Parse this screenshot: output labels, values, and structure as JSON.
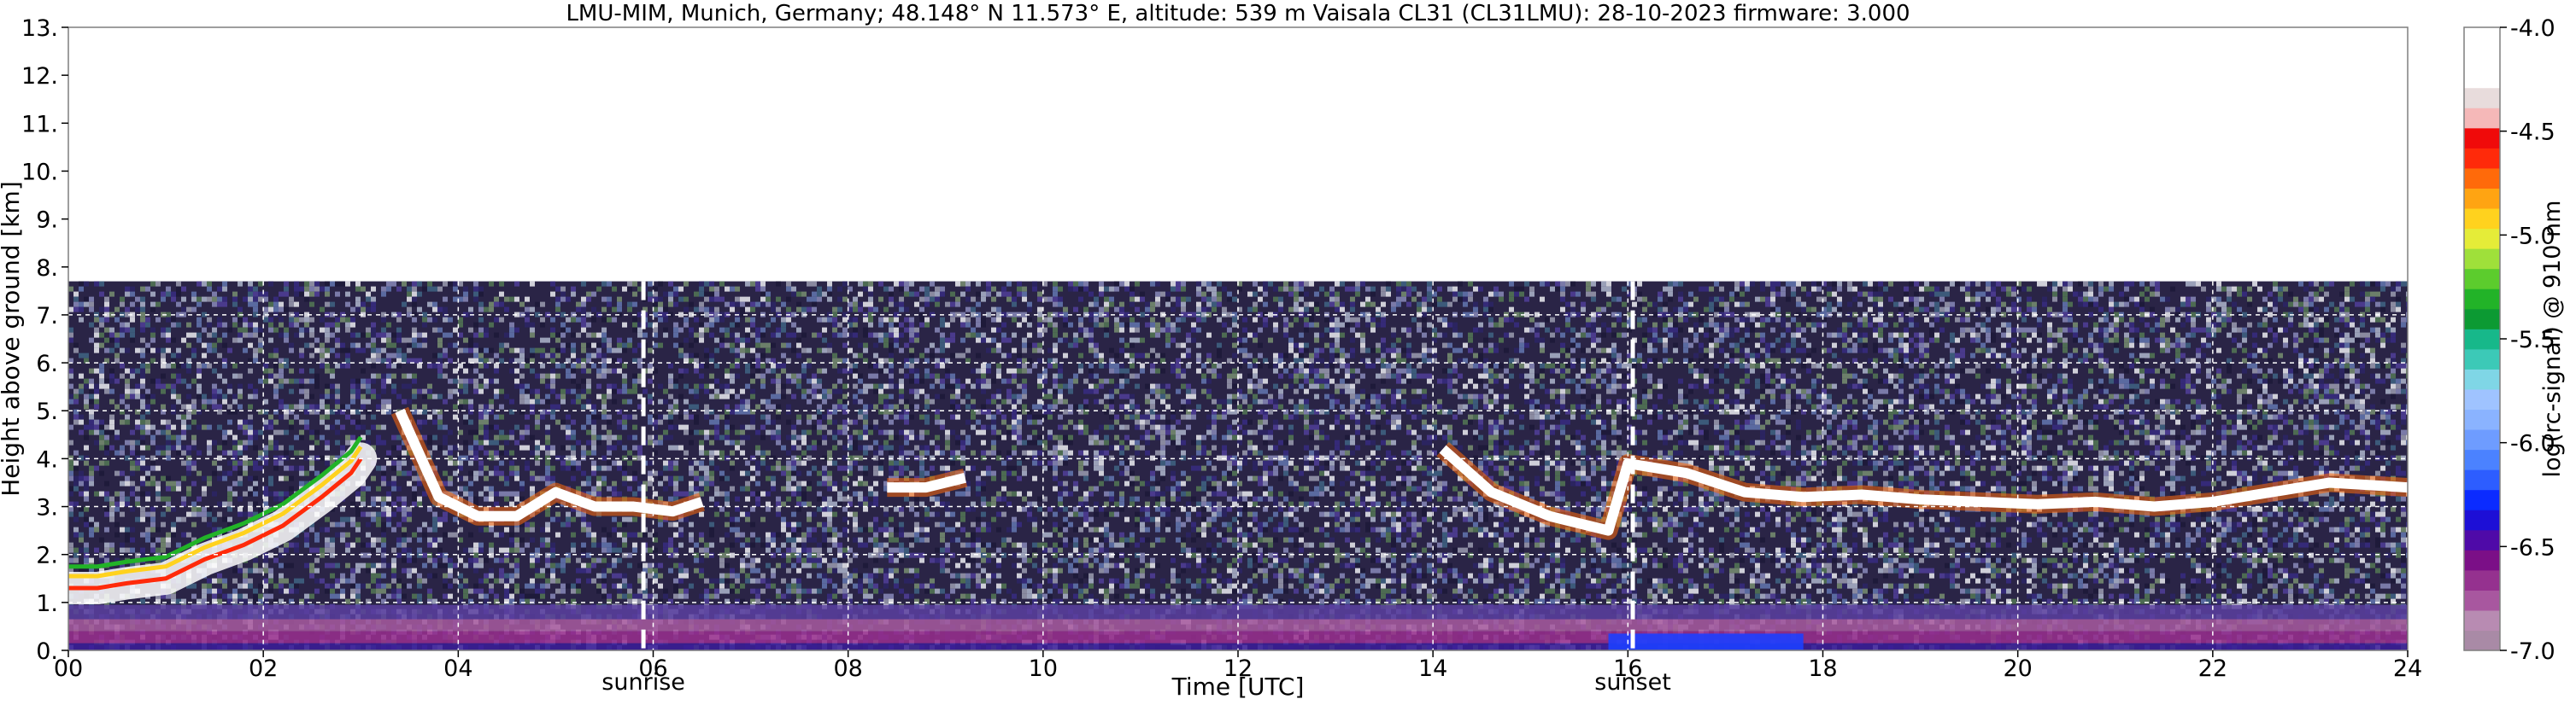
{
  "chart_data": {
    "type": "heatmap",
    "title": "LMU-MIM, Munich, Germany; 48.148° N 11.573° E, altitude: 539 m    Vaisala CL31 (CL31LMU): 28-10-2023    firmware: 3.000",
    "xlabel": "Time [UTC]",
    "ylabel": "Height above ground [km]",
    "xlim": [
      0,
      24
    ],
    "ylim": [
      0,
      13
    ],
    "x_ticks": [
      0,
      2,
      4,
      6,
      8,
      10,
      12,
      14,
      16,
      18,
      20,
      22,
      24
    ],
    "x_tick_labels": [
      "00",
      "02",
      "04",
      "06",
      "08",
      "10",
      "12",
      "14",
      "16",
      "18",
      "20",
      "22",
      "24"
    ],
    "y_ticks": [
      0,
      1,
      2,
      3,
      4,
      5,
      6,
      7,
      8,
      9,
      10,
      11,
      12,
      13
    ],
    "y_tick_labels": [
      "0.",
      "1.",
      "2.",
      "3.",
      "4.",
      "5.",
      "6.",
      "7.",
      "8.",
      "9.",
      "10.",
      "11.",
      "12.",
      "13."
    ],
    "grid": true,
    "data_top_km": 7.7,
    "markers": [
      {
        "label": "sunrise",
        "x": 5.9
      },
      {
        "label": "sunset",
        "x": 16.05
      }
    ],
    "colorbar": {
      "label": "log(rc-signal) @ 910 nm",
      "range": [
        -7.0,
        -4.0
      ],
      "tick_values": [
        -4.0,
        -4.5,
        -5.0,
        -5.5,
        -6.0,
        -6.5,
        -7.0
      ],
      "tick_labels": [
        "-4.0",
        "-4.5",
        "-5.0",
        "-5.5",
        "-6.0",
        "-6.5",
        "-7.0"
      ],
      "colors": [
        "#a98aa6",
        "#b88bb2",
        "#a8579f",
        "#95318f",
        "#7b0f87",
        "#4f0aa8",
        "#1d0fd6",
        "#0b2bff",
        "#2d5dff",
        "#4b82ff",
        "#6e9cff",
        "#8ab3ff",
        "#9fc3ff",
        "#7fd6e6",
        "#3cc9b7",
        "#17b88a",
        "#0c9a33",
        "#22b328",
        "#5ccc2d",
        "#9fe03a",
        "#e5ec38",
        "#ffd21e",
        "#ffa412",
        "#ff6a0a",
        "#ff2a0a",
        "#f00a0a",
        "#f5b8b8",
        "#e8dcdc",
        "#ffffff",
        "#ffffff",
        "#ffffff"
      ]
    },
    "series": [
      {
        "layer": "aerosol layer top",
        "x": [
          0.0,
          0.3,
          0.6,
          1.0,
          1.4,
          1.8,
          2.2,
          2.6,
          2.9,
          3.0
        ],
        "y": [
          1.3,
          1.3,
          1.4,
          1.5,
          1.9,
          2.2,
          2.6,
          3.2,
          3.7,
          4.0
        ]
      },
      {
        "layer": "cloud layer 03-07 UTC",
        "x": [
          3.4,
          3.8,
          4.2,
          4.6,
          5.0,
          5.4,
          5.8,
          6.2,
          6.5
        ],
        "y": [
          5.0,
          3.2,
          2.8,
          2.8,
          3.3,
          3.0,
          3.0,
          2.9,
          3.1
        ]
      },
      {
        "layer": "cloud layer 08-09 UTC",
        "x": [
          8.4,
          8.8,
          9.2
        ],
        "y": [
          3.4,
          3.4,
          3.6
        ]
      },
      {
        "layer": "cloud layer 14-24 UTC",
        "x": [
          14.1,
          14.6,
          15.2,
          15.8,
          16.0,
          16.6,
          17.2,
          17.8,
          18.4,
          19.0,
          19.6,
          20.2,
          20.8,
          21.4,
          22.0,
          23.2,
          24.0
        ],
        "y": [
          4.2,
          3.3,
          2.8,
          2.5,
          3.9,
          3.7,
          3.3,
          3.2,
          3.25,
          3.15,
          3.1,
          3.05,
          3.1,
          3.0,
          3.1,
          3.5,
          3.4
        ]
      }
    ]
  }
}
